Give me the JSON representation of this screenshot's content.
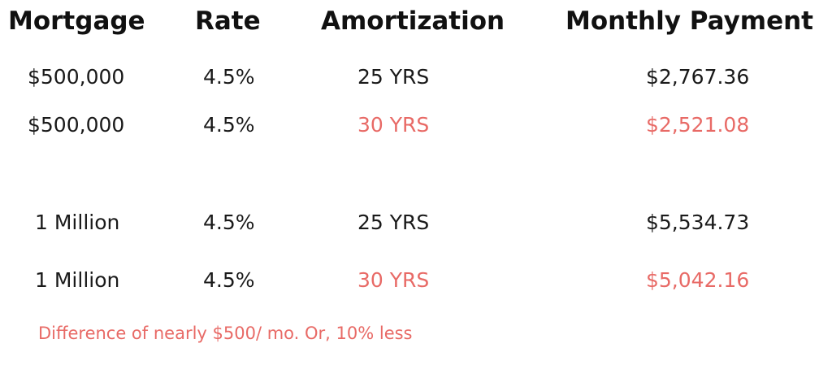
{
  "headers": {
    "mortgage": "Mortgage",
    "rate": "Rate",
    "amortization": "Amortization",
    "monthly_payment": "Monthly Payment"
  },
  "rows": [
    {
      "mortgage": "$500,000",
      "rate": "4.5%",
      "amortization": "25 YRS",
      "payment": "$2,767.36",
      "highlighted": false
    },
    {
      "mortgage": "$500,000",
      "rate": "4.5%",
      "amortization": "30 YRS",
      "payment": "$2,521.08",
      "highlighted": true
    },
    {
      "mortgage": "1 Million",
      "rate": "4.5%",
      "amortization": "25 YRS",
      "payment": "$5,534.73",
      "highlighted": false
    },
    {
      "mortgage": "1 Million",
      "rate": "4.5%",
      "amortization": "30 YRS",
      "payment": "$5,042.16",
      "highlighted": true
    }
  ],
  "note": "Difference of nearly $500/ mo. Or, 10% less",
  "colors": {
    "text": "#1a1a1a",
    "accent": "#e86a66"
  }
}
